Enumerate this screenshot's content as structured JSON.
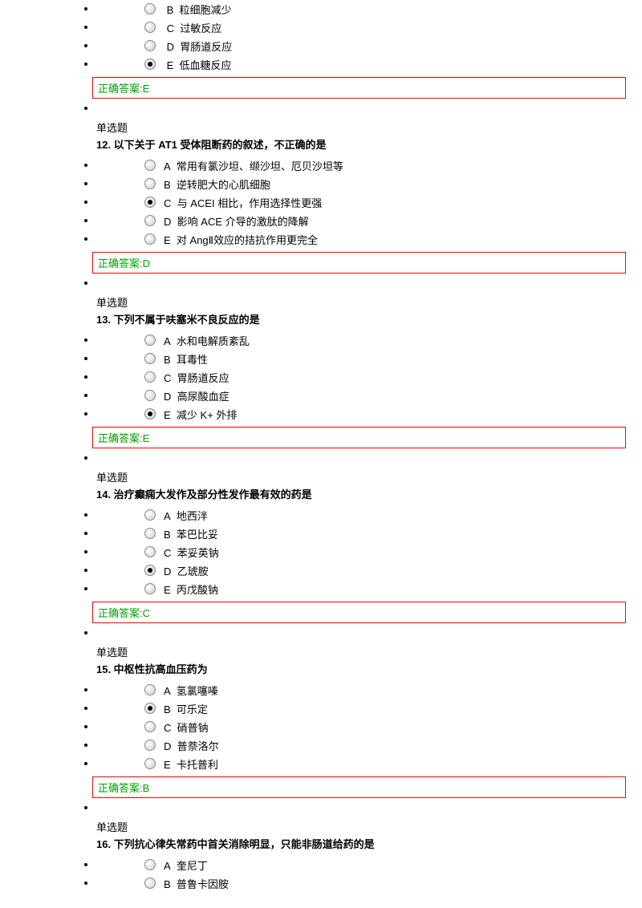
{
  "answer_label_prefix": "正确答案:",
  "q11_tail": {
    "options": [
      {
        "letter": "B",
        "text": "粒细胞减少",
        "selected": false
      },
      {
        "letter": "C",
        "text": "过敏反应",
        "selected": false
      },
      {
        "letter": "D",
        "text": "胃肠道反应",
        "selected": false
      },
      {
        "letter": "E",
        "text": "低血糖反应",
        "selected": true
      }
    ],
    "answer": "E"
  },
  "q12": {
    "type": "单选题",
    "title": "12. 以下关于 AT1 受体阻断药的叙述，不正确的是",
    "options": [
      {
        "letter": "A",
        "text": "常用有氯沙坦、缬沙坦、厄贝沙坦等",
        "selected": false
      },
      {
        "letter": "B",
        "text": "逆转肥大的心肌细胞",
        "selected": false
      },
      {
        "letter": "C",
        "text": "与 ACEI 相比，作用选择性更强",
        "selected": true
      },
      {
        "letter": "D",
        "text": "影响 ACE 介导的激肽的降解",
        "selected": false
      },
      {
        "letter": "E",
        "text": "对 AngⅡ效应的拮抗作用更完全",
        "selected": false
      }
    ],
    "answer": "D"
  },
  "q13": {
    "type": "单选题",
    "title": "13. 下列不属于呋塞米不良反应的是",
    "options": [
      {
        "letter": "A",
        "text": "水和电解质紊乱",
        "selected": false
      },
      {
        "letter": "B",
        "text": "耳毒性",
        "selected": false
      },
      {
        "letter": "C",
        "text": "胃肠道反应",
        "selected": false
      },
      {
        "letter": "D",
        "text": "高尿酸血症",
        "selected": false
      },
      {
        "letter": "E",
        "text": "减少 K+  外排",
        "selected": true
      }
    ],
    "answer": "E"
  },
  "q14": {
    "type": "单选题",
    "title": "14. 治疗癫痫大发作及部分性发作最有效的药是",
    "options": [
      {
        "letter": "A",
        "text": "地西泮",
        "selected": false
      },
      {
        "letter": "B",
        "text": "苯巴比妥",
        "selected": false
      },
      {
        "letter": "C",
        "text": "苯妥英钠",
        "selected": false
      },
      {
        "letter": "D",
        "text": "乙琥胺",
        "selected": true
      },
      {
        "letter": "E",
        "text": "丙戊酸钠",
        "selected": false
      }
    ],
    "answer": "C"
  },
  "q15": {
    "type": "单选题",
    "title": "15. 中枢性抗高血压药为",
    "options": [
      {
        "letter": "A",
        "text": "氢氯噻嗪",
        "selected": false
      },
      {
        "letter": "B",
        "text": "可乐定",
        "selected": true
      },
      {
        "letter": "C",
        "text": "硝普钠",
        "selected": false
      },
      {
        "letter": "D",
        "text": "普萘洛尔",
        "selected": false
      },
      {
        "letter": "E",
        "text": "卡托普利",
        "selected": false
      }
    ],
    "answer": "B"
  },
  "q16": {
    "type": "单选题",
    "title": "16. 下列抗心律失常药中首关消除明显，只能非肠道给药的是",
    "options_head": [
      {
        "letter": "A",
        "text": "奎尼丁",
        "selected": false
      },
      {
        "letter": "B",
        "text": "普鲁卡因胺",
        "selected": false
      }
    ]
  }
}
